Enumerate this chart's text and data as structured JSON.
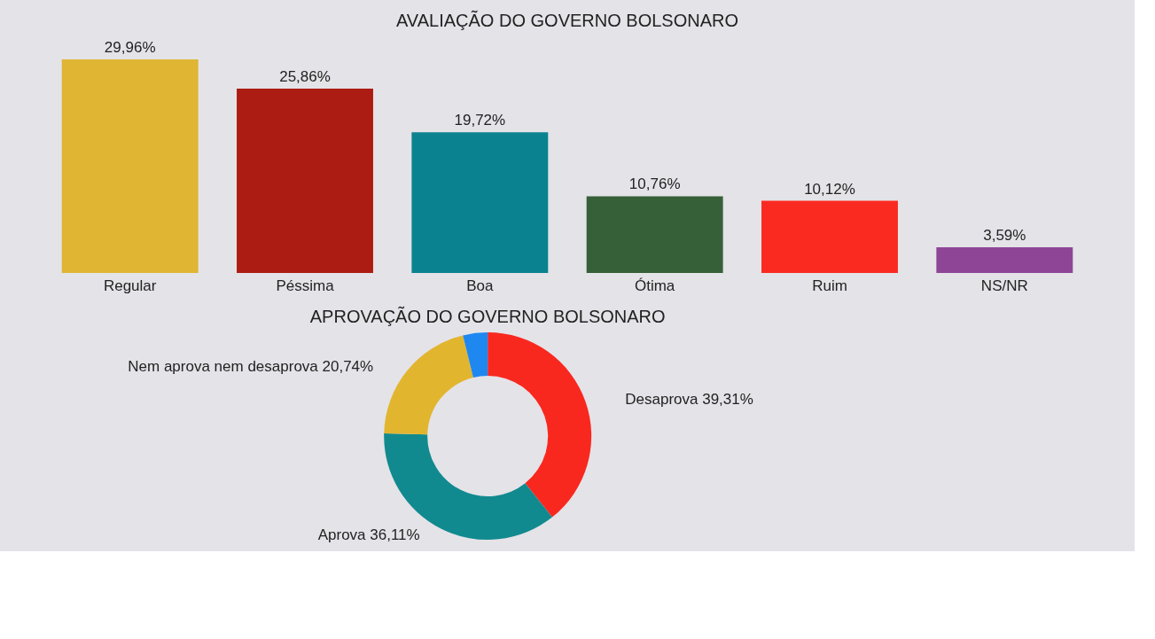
{
  "chart_data": [
    {
      "type": "bar",
      "title": "AVALIAÇÃO DO GOVERNO BOLSONARO",
      "categories": [
        "Regular",
        "Péssima",
        "Boa",
        "Ótima",
        "Ruim",
        "NS/NR"
      ],
      "values": [
        29.96,
        25.86,
        19.72,
        10.76,
        10.12,
        3.59
      ],
      "colors": [
        "#dfb533",
        "#ad1c12",
        "#0b8290",
        "#366038",
        "#fa2a20",
        "#8e4596"
      ],
      "value_labels": [
        "29,96%",
        "25,86%",
        "19,72%",
        "10,76%",
        "10,12%",
        "3,59%"
      ],
      "tick_labels": "x",
      "grid": false
    },
    {
      "type": "donut",
      "title": "APROVAÇÃO DO GOVERNO BOLSONARO",
      "categories": [
        "Desaprova",
        "Aprova",
        "Nem aprova nem desaprova",
        null
      ],
      "values": [
        39.31,
        36.11,
        20.74,
        3.84
      ],
      "colors": [
        "#f9281f",
        "#118a8f",
        "#e2b52f",
        "#1e88f0"
      ],
      "value_labels": [
        "39,31%",
        "36,11%",
        "20,74%",
        null
      ]
    }
  ]
}
